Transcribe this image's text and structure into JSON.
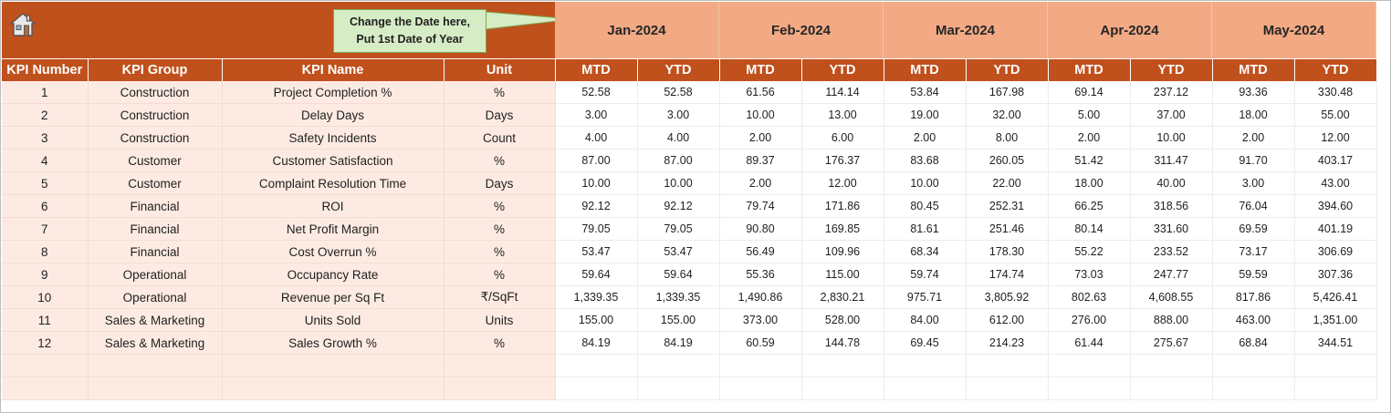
{
  "callout": {
    "line1": "Change the Date here,",
    "line2": "Put 1st Date of Year"
  },
  "months": [
    "Jan-2024",
    "Feb-2024",
    "Mar-2024",
    "Apr-2024",
    "May-2024"
  ],
  "headers": {
    "kpi_number": "KPI Number",
    "kpi_group": "KPI Group",
    "kpi_name": "KPI Name",
    "unit": "Unit",
    "mtd": "MTD",
    "ytd": "YTD"
  },
  "rows": [
    {
      "num": "1",
      "group": "Construction",
      "name": "Project Completion %",
      "unit": "%",
      "values": [
        "52.58",
        "52.58",
        "61.56",
        "114.14",
        "53.84",
        "167.98",
        "69.14",
        "237.12",
        "93.36",
        "330.48"
      ]
    },
    {
      "num": "2",
      "group": "Construction",
      "name": "Delay Days",
      "unit": "Days",
      "values": [
        "3.00",
        "3.00",
        "10.00",
        "13.00",
        "19.00",
        "32.00",
        "5.00",
        "37.00",
        "18.00",
        "55.00"
      ]
    },
    {
      "num": "3",
      "group": "Construction",
      "name": "Safety Incidents",
      "unit": "Count",
      "values": [
        "4.00",
        "4.00",
        "2.00",
        "6.00",
        "2.00",
        "8.00",
        "2.00",
        "10.00",
        "2.00",
        "12.00"
      ]
    },
    {
      "num": "4",
      "group": "Customer",
      "name": "Customer Satisfaction",
      "unit": "%",
      "values": [
        "87.00",
        "87.00",
        "89.37",
        "176.37",
        "83.68",
        "260.05",
        "51.42",
        "311.47",
        "91.70",
        "403.17"
      ]
    },
    {
      "num": "5",
      "group": "Customer",
      "name": "Complaint Resolution Time",
      "unit": "Days",
      "values": [
        "10.00",
        "10.00",
        "2.00",
        "12.00",
        "10.00",
        "22.00",
        "18.00",
        "40.00",
        "3.00",
        "43.00"
      ]
    },
    {
      "num": "6",
      "group": "Financial",
      "name": "ROI",
      "unit": "%",
      "values": [
        "92.12",
        "92.12",
        "79.74",
        "171.86",
        "80.45",
        "252.31",
        "66.25",
        "318.56",
        "76.04",
        "394.60"
      ]
    },
    {
      "num": "7",
      "group": "Financial",
      "name": "Net Profit Margin",
      "unit": "%",
      "values": [
        "79.05",
        "79.05",
        "90.80",
        "169.85",
        "81.61",
        "251.46",
        "80.14",
        "331.60",
        "69.59",
        "401.19"
      ]
    },
    {
      "num": "8",
      "group": "Financial",
      "name": "Cost Overrun %",
      "unit": "%",
      "values": [
        "53.47",
        "53.47",
        "56.49",
        "109.96",
        "68.34",
        "178.30",
        "55.22",
        "233.52",
        "73.17",
        "306.69"
      ]
    },
    {
      "num": "9",
      "group": "Operational",
      "name": "Occupancy Rate",
      "unit": "%",
      "values": [
        "59.64",
        "59.64",
        "55.36",
        "115.00",
        "59.74",
        "174.74",
        "73.03",
        "247.77",
        "59.59",
        "307.36"
      ]
    },
    {
      "num": "10",
      "group": "Operational",
      "name": "Revenue per Sq Ft",
      "unit": "₹/SqFt",
      "values": [
        "1,339.35",
        "1,339.35",
        "1,490.86",
        "2,830.21",
        "975.71",
        "3,805.92",
        "802.63",
        "4,608.55",
        "817.86",
        "5,426.41"
      ]
    },
    {
      "num": "11",
      "group": "Sales & Marketing",
      "name": "Units Sold",
      "unit": "Units",
      "values": [
        "155.00",
        "155.00",
        "373.00",
        "528.00",
        "84.00",
        "612.00",
        "276.00",
        "888.00",
        "463.00",
        "1,351.00"
      ]
    },
    {
      "num": "12",
      "group": "Sales & Marketing",
      "name": "Sales Growth %",
      "unit": "%",
      "values": [
        "84.19",
        "84.19",
        "60.59",
        "144.78",
        "69.45",
        "214.23",
        "61.44",
        "275.67",
        "68.84",
        "344.51"
      ]
    }
  ],
  "icons": {
    "home": "home-icon"
  },
  "colors": {
    "header": "#c0501c",
    "month_band": "#f2a984",
    "left_fill": "#fdebe3",
    "callout": "#d6ecc5"
  }
}
